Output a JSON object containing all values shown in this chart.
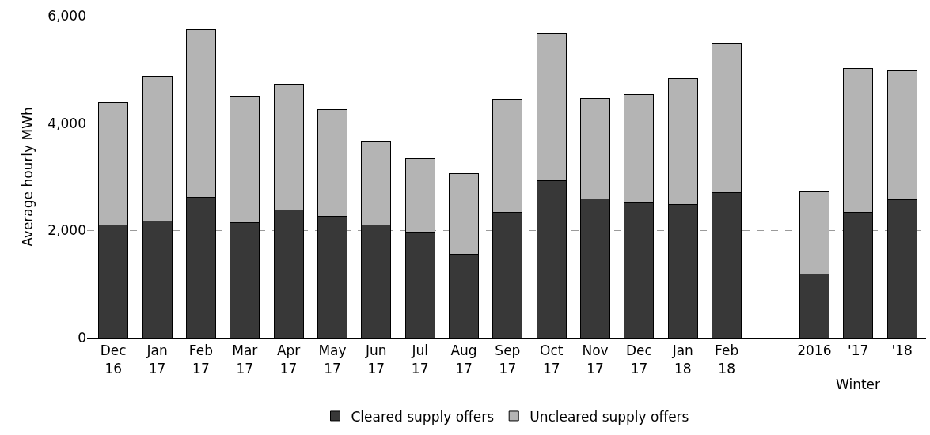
{
  "chart_data": {
    "type": "bar",
    "stacked": true,
    "ylabel": "Average hourly MWh",
    "categories": [
      "Dec\n16",
      "Jan\n17",
      "Feb\n17",
      "Mar\n17",
      "Apr\n17",
      "May\n17",
      "Jun\n17",
      "Jul\n17",
      "Aug\n17",
      "Sep\n17",
      "Oct\n17",
      "Nov\n17",
      "Dec\n17",
      "Jan\n18",
      "Feb\n18",
      null,
      "2016",
      "'17",
      "'18"
    ],
    "series": [
      {
        "name": "Cleared supply offers",
        "color": "#383838",
        "values": [
          2100,
          2180,
          2620,
          2150,
          2380,
          2260,
          2100,
          1970,
          1550,
          2340,
          2920,
          2580,
          2510,
          2480,
          2710,
          null,
          1180,
          2330,
          2570
        ]
      },
      {
        "name": "Uncleared supply offers",
        "color": "#b4b4b4",
        "values": [
          2290,
          2690,
          3120,
          2340,
          2350,
          1990,
          1560,
          1370,
          1510,
          2110,
          2750,
          1880,
          2030,
          2350,
          2760,
          null,
          1540,
          2690,
          2400
        ]
      }
    ],
    "annotations": [
      "Winter"
    ],
    "ylim": [
      0,
      6000
    ],
    "yticks": [
      {
        "value": 0,
        "label": "0"
      },
      {
        "value": 2000,
        "label": "2,000"
      },
      {
        "value": 4000,
        "label": "4,000"
      },
      {
        "value": 6000,
        "label": "6,000"
      }
    ],
    "grid": "y",
    "legend": "bottom"
  }
}
